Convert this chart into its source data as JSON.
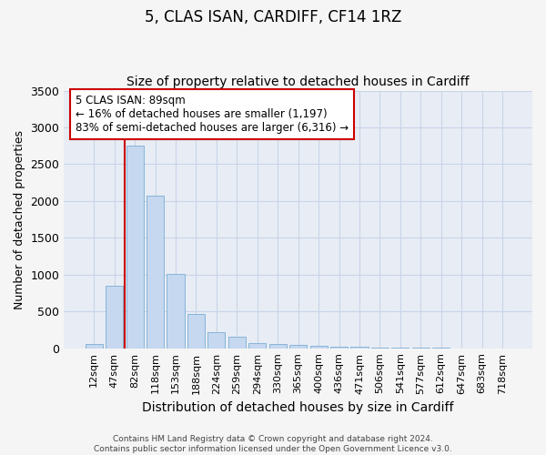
{
  "title": "5, CLAS ISAN, CARDIFF, CF14 1RZ",
  "subtitle": "Size of property relative to detached houses in Cardiff",
  "xlabel": "Distribution of detached houses by size in Cardiff",
  "ylabel": "Number of detached properties",
  "categories": [
    "12sqm",
    "47sqm",
    "82sqm",
    "118sqm",
    "153sqm",
    "188sqm",
    "224sqm",
    "259sqm",
    "294sqm",
    "330sqm",
    "365sqm",
    "400sqm",
    "436sqm",
    "471sqm",
    "506sqm",
    "541sqm",
    "577sqm",
    "612sqm",
    "647sqm",
    "683sqm",
    "718sqm"
  ],
  "values": [
    55,
    850,
    2750,
    2075,
    1010,
    465,
    215,
    155,
    65,
    55,
    50,
    35,
    25,
    15,
    10,
    7,
    5,
    3,
    2,
    2,
    1
  ],
  "bar_color": "#c5d8ef",
  "bar_edge_color": "#7badd4",
  "bar_width": 0.85,
  "vline_color": "#cc0000",
  "vline_index": 2,
  "annotation_line1": "5 CLAS ISAN: 89sqm",
  "annotation_line2": "← 16% of detached houses are smaller (1,197)",
  "annotation_line3": "83% of semi-detached houses are larger (6,316) →",
  "annotation_box_color": "#ffffff",
  "annotation_box_edge": "#cc0000",
  "ylim": [
    0,
    3500
  ],
  "yticks": [
    0,
    500,
    1000,
    1500,
    2000,
    2500,
    3000,
    3500
  ],
  "grid_color": "#c8d4e8",
  "bg_color": "#e8edf5",
  "fig_bg_color": "#f5f5f5",
  "title_fontsize": 12,
  "subtitle_fontsize": 10,
  "ylabel_fontsize": 9,
  "xlabel_fontsize": 10,
  "tick_fontsize": 8,
  "footer_text": "Contains HM Land Registry data © Crown copyright and database right 2024.\nContains public sector information licensed under the Open Government Licence v3.0."
}
